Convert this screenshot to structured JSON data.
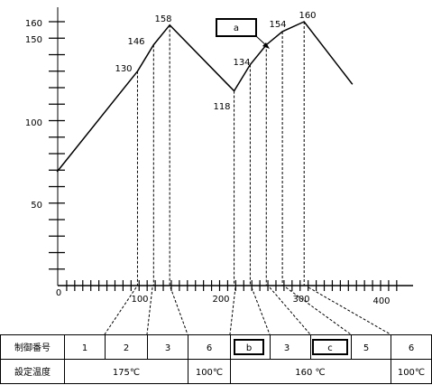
{
  "chart_data": {
    "type": "line",
    "points": [
      {
        "x": -2,
        "y": 69
      },
      {
        "x": 98,
        "y": 130,
        "label": "130"
      },
      {
        "x": 118,
        "y": 146,
        "label": "146"
      },
      {
        "x": 138,
        "y": 158,
        "label": "158"
      },
      {
        "x": 218,
        "y": 118,
        "label": "118"
      },
      {
        "x": 238,
        "y": 134,
        "label": "134"
      },
      {
        "x": 258,
        "y": 146
      },
      {
        "x": 278,
        "y": 154,
        "label": "154"
      },
      {
        "x": 305,
        "y": 160,
        "label": "160"
      },
      {
        "x": 365,
        "y": 122
      }
    ],
    "drop_lines_x": [
      98,
      118,
      138,
      218,
      238,
      258,
      278,
      305
    ],
    "y_ticks": [
      "50",
      "100",
      "150",
      "160"
    ],
    "x_ticks": [
      "0",
      "100",
      "200",
      "300",
      "400"
    ],
    "xlim": [
      0,
      400
    ],
    "ylim": [
      0,
      160
    ],
    "marker_a": "a"
  },
  "table": {
    "row1_header": "制御番号",
    "row2_header": "設定温度",
    "numbers": [
      "1",
      "2",
      "3",
      "6",
      "b",
      "3",
      "c",
      "5",
      "6"
    ],
    "temps": [
      "175℃",
      "100℃",
      "160 ℃",
      "100℃"
    ]
  }
}
